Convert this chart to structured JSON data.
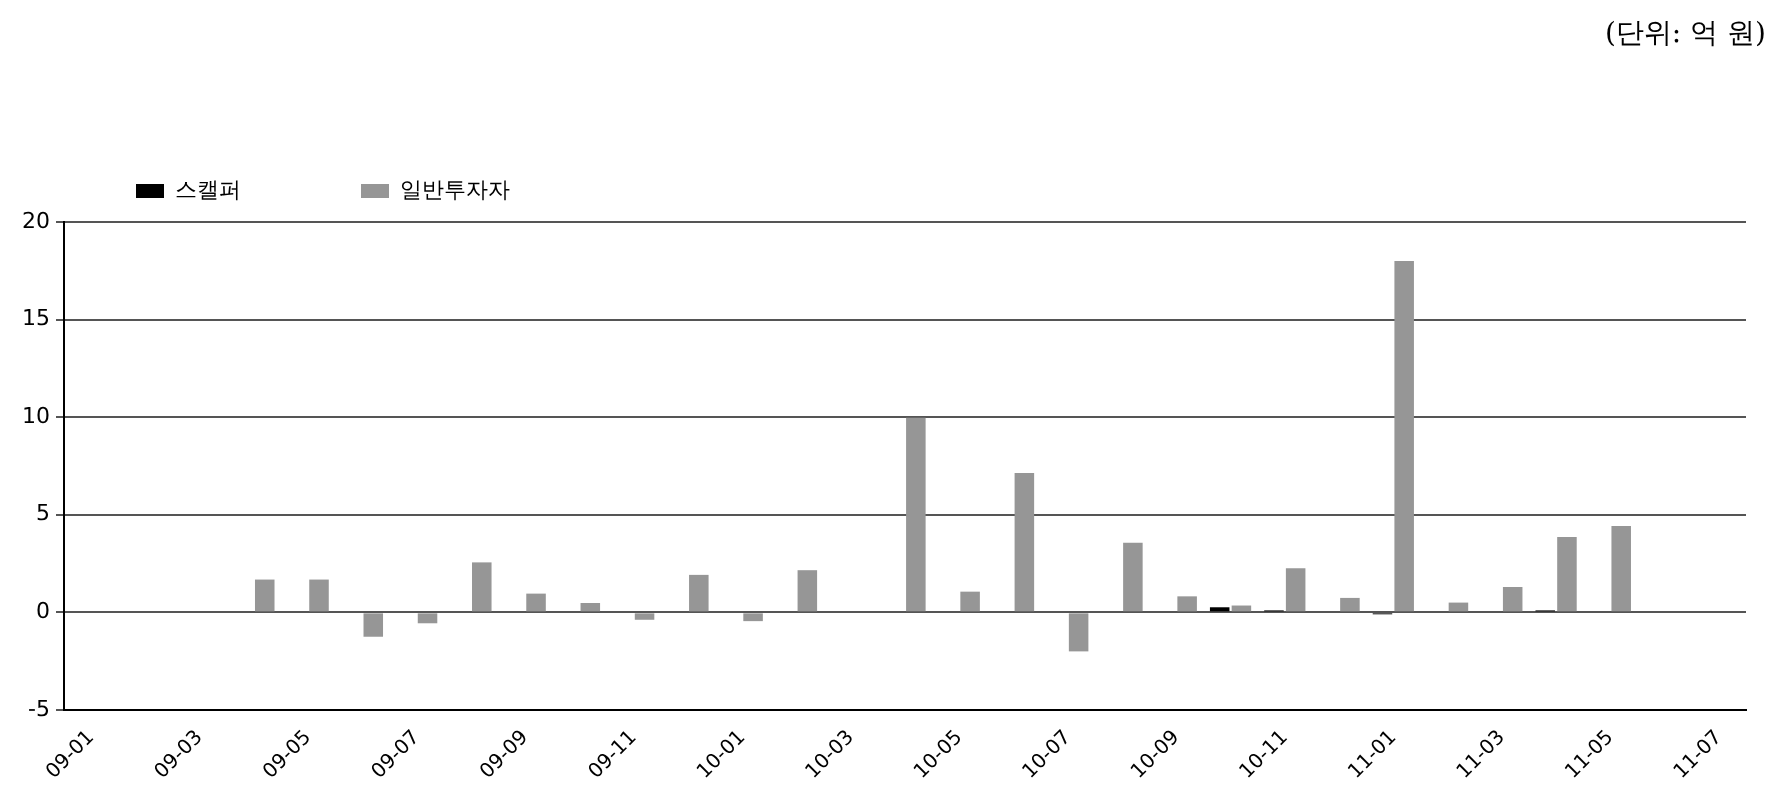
{
  "chart_data": {
    "type": "bar",
    "annotations": [
      "(단위: 억 원)"
    ],
    "categories": [
      "09-01",
      null,
      "09-03",
      null,
      "09-05",
      null,
      "09-07",
      null,
      "09-09",
      null,
      "09-11",
      null,
      "10-01",
      null,
      "10-03",
      null,
      "10-05",
      null,
      "10-07",
      null,
      "10-09",
      null,
      "10-11",
      null,
      "11-01",
      null,
      "11-03",
      null,
      "11-05",
      null,
      "11-07"
    ],
    "series": [
      {
        "name": "스캘퍼",
        "color": "#000000",
        "values": [
          0,
          0,
          0,
          0,
          0,
          0,
          0,
          0,
          0,
          0,
          0,
          0,
          0,
          0,
          0,
          0,
          0,
          0,
          0,
          0,
          0,
          0.26,
          0.1,
          0,
          -0.1,
          0,
          0,
          0.1,
          0,
          0,
          0
        ]
      },
      {
        "name": "일반투자자",
        "color": "#969696",
        "values": [
          0,
          0,
          0,
          1.68,
          1.68,
          -1.25,
          -0.56,
          2.56,
          0.96,
          0.48,
          -0.38,
          1.92,
          -0.45,
          2.16,
          0,
          9.97,
          1.06,
          7.14,
          -2.0,
          3.57,
          0.82,
          0.35,
          2.26,
          0.74,
          18.0,
          0.5,
          1.3,
          3.86,
          4.42,
          0,
          0
        ]
      }
    ],
    "ylim": [
      -5,
      20
    ],
    "yticks": [
      -5,
      0,
      5,
      10,
      15,
      20
    ],
    "grid": "y",
    "legend": "top left"
  }
}
